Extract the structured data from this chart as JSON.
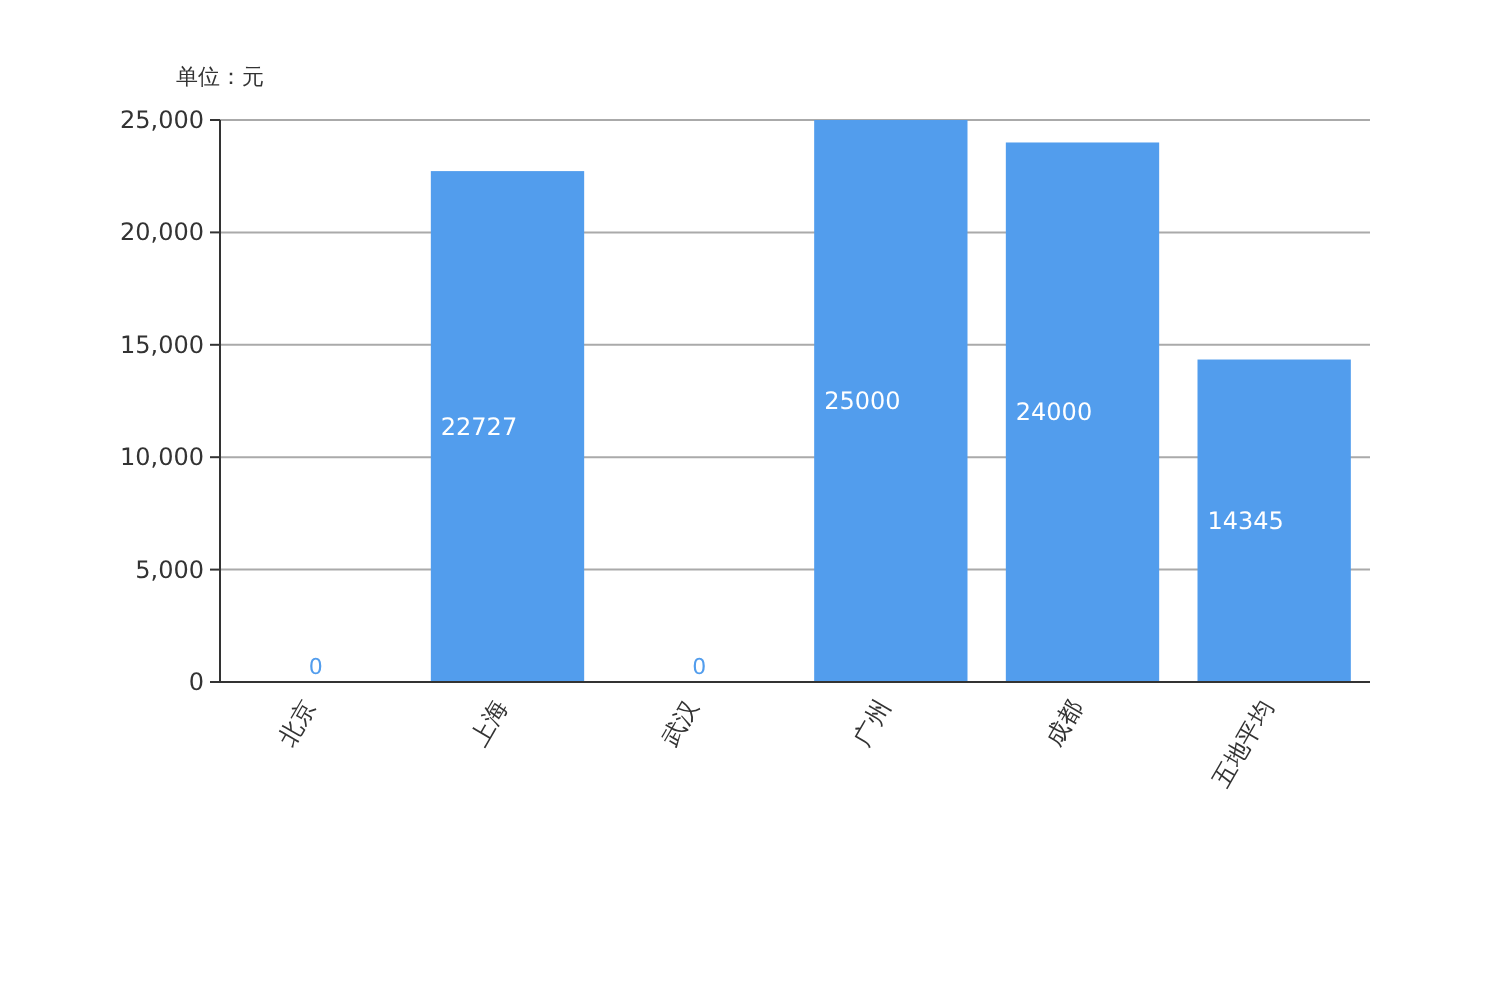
{
  "chart_data": {
    "type": "bar",
    "ylabel": "单位：元",
    "categories": [
      "北京",
      "上海",
      "武汉",
      "广州",
      "成都",
      "五地平均"
    ],
    "series": [
      {
        "color": "#529ded",
        "values": [
          0,
          22727,
          0,
          25000,
          24000,
          14345
        ]
      }
    ],
    "ylim": [
      0,
      25000
    ],
    "yticks": [
      {
        "value": 0,
        "label": "0"
      },
      {
        "value": 5000,
        "label": "5,000"
      },
      {
        "value": 10000,
        "label": "10,000"
      },
      {
        "value": 15000,
        "label": "15,000"
      },
      {
        "value": 20000,
        "label": "20,000"
      },
      {
        "value": 25000,
        "label": "25,000"
      }
    ],
    "grid": "y",
    "data_labels": true
  }
}
